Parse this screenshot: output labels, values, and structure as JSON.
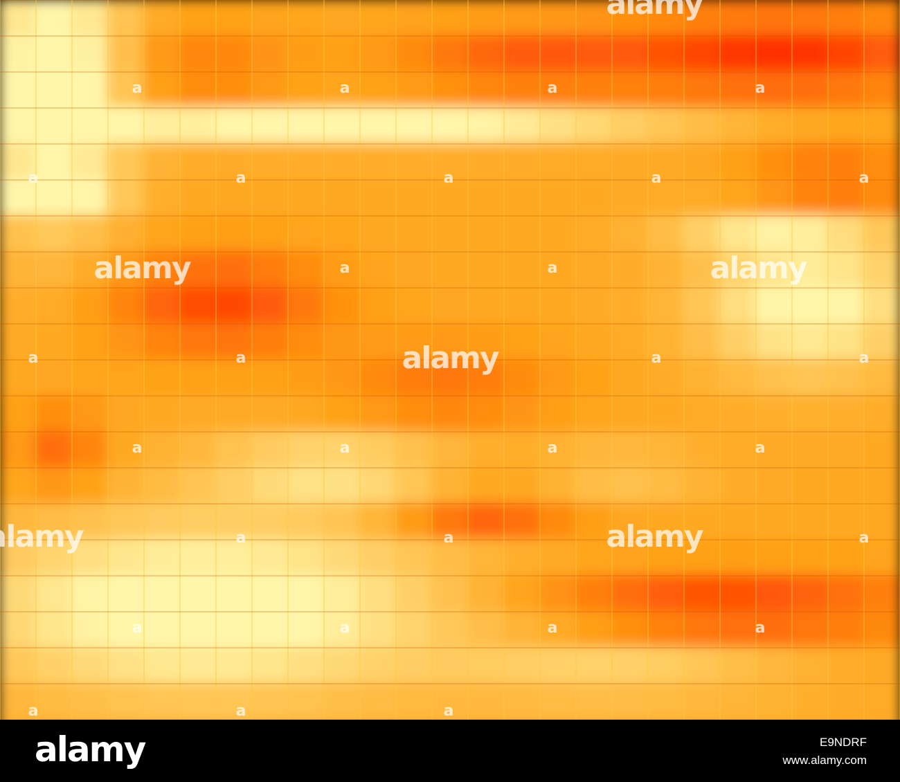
{
  "watermark": {
    "logo": "alamy",
    "mark": "a"
  },
  "footer": {
    "logo": "alamy",
    "image_id": "E9NDRF",
    "url": "www.alamy.com"
  }
}
